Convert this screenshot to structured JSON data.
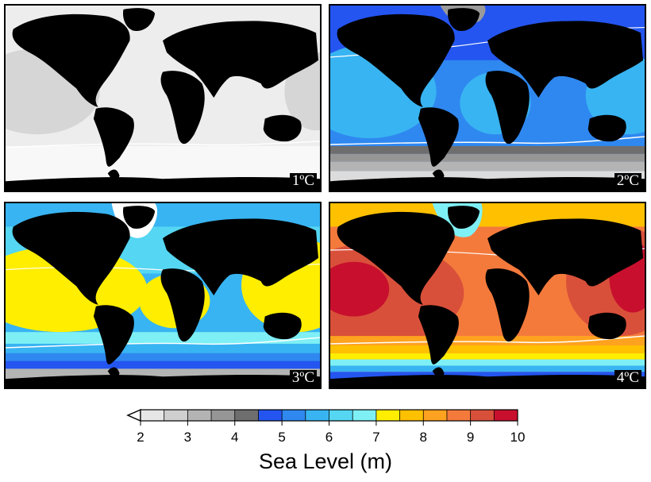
{
  "panels": [
    {
      "label": "1ºC",
      "id": "p1"
    },
    {
      "label": "2ºC",
      "id": "p2"
    },
    {
      "label": "3ºC",
      "id": "p3"
    },
    {
      "label": "4ºC",
      "id": "p4"
    }
  ],
  "legend": {
    "title": "Sea Level (m)",
    "ticks": [
      "2",
      "3",
      "4",
      "5",
      "6",
      "7",
      "8",
      "9",
      "10"
    ],
    "colors": [
      "#e6e6e6",
      "#cfcfcf",
      "#b4b4b4",
      "#969696",
      "#6e6e6e",
      "#2455f0",
      "#2f88f0",
      "#38b4f2",
      "#55d6f2",
      "#7ef0f5",
      "#ffee00",
      "#ffc000",
      "#ffa21f",
      "#f47a3c",
      "#d9503a",
      "#c8102e"
    ]
  },
  "colors": {
    "land": "#000000",
    "contour": "#ffffff"
  }
}
